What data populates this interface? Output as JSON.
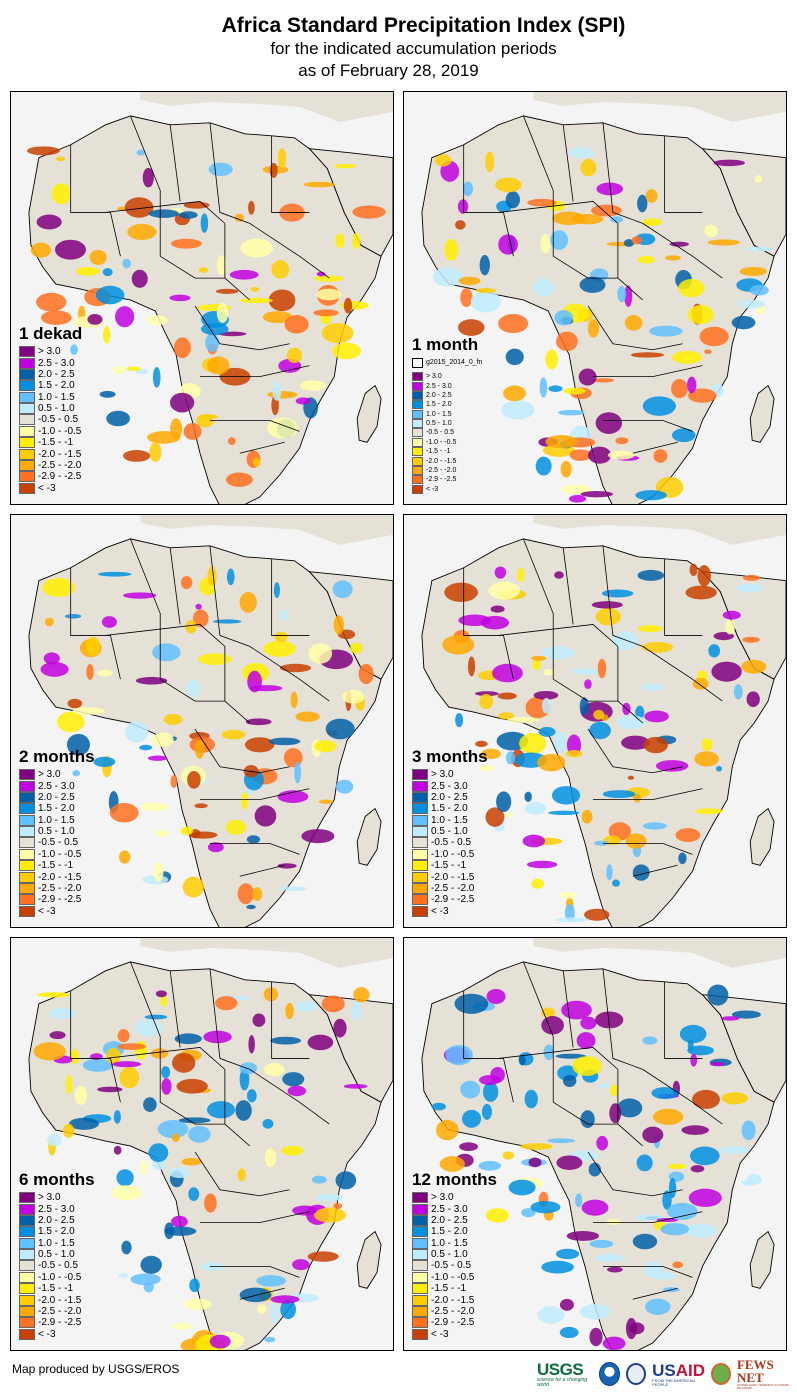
{
  "header": {
    "title": "Africa Standard Precipitation Index (SPI)",
    "subtitle": "for the indicated accumulation periods",
    "date": "as of February 28, 2019"
  },
  "legend_classes": [
    {
      "label": "> 3.0",
      "color": "#800080"
    },
    {
      "label": "2.5 - 3.0",
      "color": "#c000e0"
    },
    {
      "label": "2.0 - 2.5",
      "color": "#0060a8"
    },
    {
      "label": "1.5 - 2.0",
      "color": "#0090e0"
    },
    {
      "label": "1.0 - 1.5",
      "color": "#60c0ff"
    },
    {
      "label": "0.5 - 1.0",
      "color": "#c0ecff"
    },
    {
      "label": "-0.5 - 0.5",
      "color": "#e6e1d7"
    },
    {
      "label": "-1.0 - -0.5",
      "color": "#ffffa8"
    },
    {
      "label": "-1.5 - -1",
      "color": "#ffee00"
    },
    {
      "label": "-2.0 - -1.5",
      "color": "#ffcc00"
    },
    {
      "label": "-2.5 - -2.0",
      "color": "#ffa800"
    },
    {
      "label": "-2.9 - -2.5",
      "color": "#ff7020"
    },
    {
      "label": "< -3",
      "color": "#c84000"
    }
  ],
  "panels": [
    {
      "id": "1-dekad",
      "label": "1 dekad",
      "extra_legend": null
    },
    {
      "id": "1-month",
      "label": "1 month",
      "extra_legend": "g2015_2014_0_fn"
    },
    {
      "id": "2-months",
      "label": "2 months",
      "extra_legend": null
    },
    {
      "id": "3-months",
      "label": "3 months",
      "extra_legend": null
    },
    {
      "id": "6-months",
      "label": "6 months",
      "extra_legend": null
    },
    {
      "id": "12-months",
      "label": "12 months",
      "extra_legend": null
    }
  ],
  "colors": {
    "ocean": "#f4f4f4",
    "land_normal": "#e6e1d7",
    "border": "#000000"
  },
  "footer": {
    "credit": "Map produced by USGS/EROS",
    "logos": {
      "usgs": "USGS",
      "usgs_tagline": "science for a changing world",
      "usaid_us": "US",
      "usaid_aid": "AID",
      "usaid_tagline": "FROM THE AMERICAN PEOPLE",
      "fews": "FEWS NET",
      "fews_tagline": "FAMINE EARLY WARNING SYSTEMS NETWORK"
    }
  }
}
